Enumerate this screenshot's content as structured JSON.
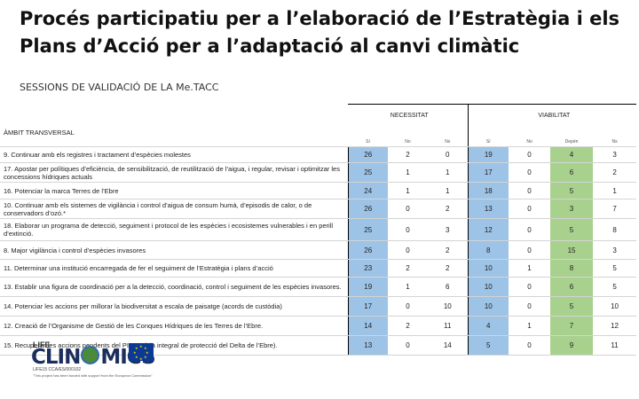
{
  "title": "Procés participatiu per a l’elaboració de l’Estratègia i els Plans d’Acció per a l’adaptació al canvi climàtic",
  "subtitle": "SESSIONS DE VALIDACIÓ DE LA Me.TACC",
  "table": {
    "ambit_header": "ÀMBIT TRANSVERSAL",
    "necessitat_header": "NECESSITAT",
    "viabilitat_header": "VIABILITAT",
    "necessitat_subheaders": [
      "Sí",
      "No",
      "Ns"
    ],
    "viabilitat_subheaders": [
      "Sí",
      "No",
      "Depèn",
      "Ns"
    ],
    "rows": [
      {
        "label": "9. Continuar amb els registres i tractament d’espècies molestes",
        "nec": [
          "26",
          "2",
          "0"
        ],
        "via": [
          "19",
          "0",
          "4",
          "3"
        ]
      },
      {
        "label": "17. Apostar per polítiques d’eficiència, de sensibilització, de reutilització de l’aigua, i regular, revisar i optimitzar les concessions hídriques actuals",
        "nec": [
          "25",
          "1",
          "1"
        ],
        "via": [
          "17",
          "0",
          "6",
          "2"
        ]
      },
      {
        "label": "16. Potenciar la marca Terres de l’Ebre",
        "nec": [
          "24",
          "1",
          "1"
        ],
        "via": [
          "18",
          "0",
          "5",
          "1"
        ]
      },
      {
        "label": "10. Continuar amb els sistemes de vigilància i control d’aigua de consum humà, d’episodis de calor, o de conservadors d’ozó.*",
        "nec": [
          "26",
          "0",
          "2"
        ],
        "via": [
          "13",
          "0",
          "3",
          "7"
        ]
      },
      {
        "label": "18. Elaborar un programa de detecció, seguiment i protocol de les espècies i ecosistemes vulnerables i en perill d’extinció.",
        "nec": [
          "25",
          "0",
          "3"
        ],
        "via": [
          "12",
          "0",
          "5",
          "8"
        ]
      },
      {
        "label": "8. Major vigilància i control d’espècies invasores",
        "nec": [
          "26",
          "0",
          "2"
        ],
        "via": [
          "8",
          "0",
          "15",
          "3"
        ]
      },
      {
        "label": "11. Determinar una institució encarregada de fer el seguiment de l’Estratègia i plans d’acció",
        "nec": [
          "23",
          "2",
          "2"
        ],
        "via": [
          "10",
          "1",
          "8",
          "5"
        ]
      },
      {
        "label": "13. Establir una figura de coordinació per a la detecció, coordinació, control i seguiment de les espècies invasores.",
        "nec": [
          "19",
          "1",
          "6"
        ],
        "via": [
          "10",
          "0",
          "6",
          "5"
        ]
      },
      {
        "label": "14. Potenciar les accions per millorar la biodiversitat a escala de paisatge (acords de custòdia)",
        "nec": [
          "17",
          "0",
          "10"
        ],
        "via": [
          "10",
          "0",
          "5",
          "10"
        ]
      },
      {
        "label": "12. Creació de l’Organisme de Gestió de les Conques Hídriques de les Terres de l’Ebre.",
        "nec": [
          "14",
          "2",
          "11"
        ],
        "via": [
          "4",
          "1",
          "7",
          "12"
        ]
      },
      {
        "label": "15. Recuperar les accions pendents del PIPDE (pla integral de protecció del Delta de l’Ebre).",
        "nec": [
          "13",
          "0",
          "14"
        ],
        "via": [
          "5",
          "0",
          "9",
          "11"
        ]
      }
    ]
  },
  "logo": {
    "top_text": "LIFE",
    "name_pre": "CLIN",
    "name_post": "MICS",
    "code": "LIFE15 CCA/ES/000102",
    "note": "\"This project has been funded with support from the European Commission\""
  },
  "colors": {
    "necessitat_yes": "#9dc3e6",
    "viabilitat_depen": "#a9d18e"
  }
}
